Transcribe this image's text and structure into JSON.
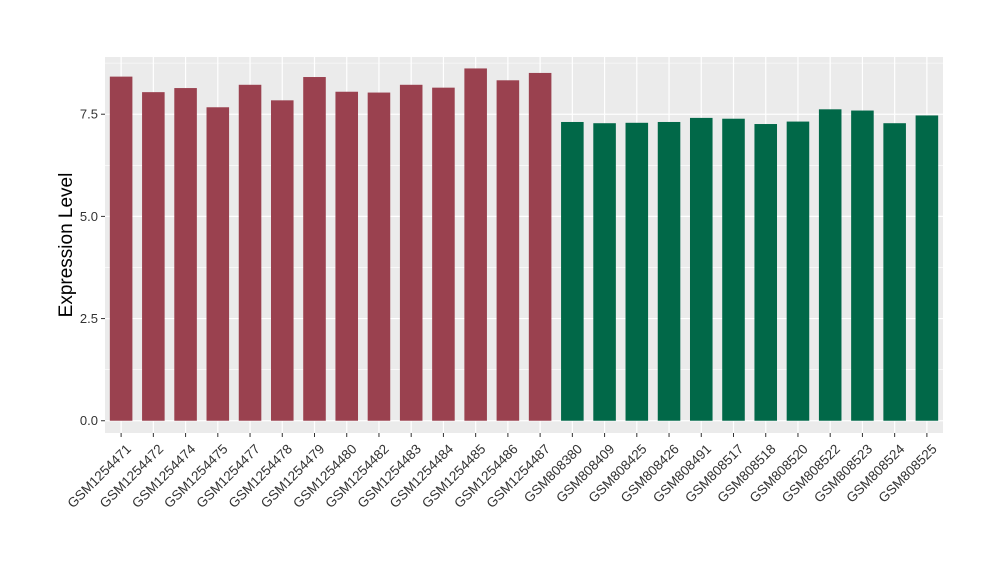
{
  "chart_data": {
    "type": "bar",
    "title": "",
    "xlabel": "",
    "ylabel": "Expression Level",
    "ylim": [
      -0.3,
      8.9
    ],
    "yticks": [
      0.0,
      2.5,
      5.0,
      7.5
    ],
    "ytick_labels": [
      "0.0",
      "2.5",
      "5.0",
      "7.5"
    ],
    "grid": true,
    "legend": "none",
    "categories": [
      "GSM1254471",
      "GSM1254472",
      "GSM1254474",
      "GSM1254475",
      "GSM1254477",
      "GSM1254478",
      "GSM1254479",
      "GSM1254480",
      "GSM1254482",
      "GSM1254483",
      "GSM1254484",
      "GSM1254485",
      "GSM1254486",
      "GSM1254487",
      "GSM808380",
      "GSM808409",
      "GSM808425",
      "GSM808426",
      "GSM808491",
      "GSM808517",
      "GSM808518",
      "GSM808520",
      "GSM808522",
      "GSM808523",
      "GSM808524",
      "GSM808525"
    ],
    "values": [
      8.42,
      8.04,
      8.14,
      7.67,
      8.22,
      7.84,
      8.41,
      8.05,
      8.03,
      8.22,
      8.15,
      8.62,
      8.33,
      8.51,
      7.31,
      7.28,
      7.29,
      7.31,
      7.41,
      7.39,
      7.26,
      7.32,
      7.62,
      7.59,
      7.28,
      7.47
    ],
    "bar_colors": [
      "#9a414f",
      "#9a414f",
      "#9a414f",
      "#9a414f",
      "#9a414f",
      "#9a414f",
      "#9a414f",
      "#9a414f",
      "#9a414f",
      "#9a414f",
      "#9a414f",
      "#9a414f",
      "#9a414f",
      "#9a414f",
      "#016848",
      "#016848",
      "#016848",
      "#016848",
      "#016848",
      "#016848",
      "#016848",
      "#016848",
      "#016848",
      "#016848",
      "#016848",
      "#016848"
    ],
    "panel_background": "#ebebeb",
    "grid_color": "#ffffff"
  }
}
